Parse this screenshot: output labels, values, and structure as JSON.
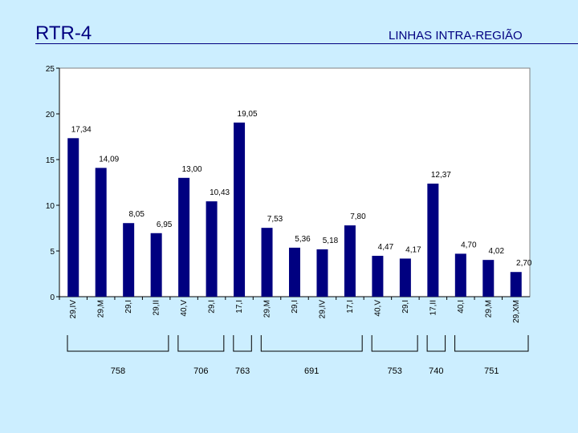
{
  "header": {
    "title": "RTR-4",
    "subtitle": "LINHAS INTRA-REGIÃO"
  },
  "chart_data": {
    "type": "bar",
    "title": "RTR-4",
    "subtitle": "LINHAS INTRA-REGIÃO",
    "ylim": [
      0,
      25
    ],
    "yticks": [
      0,
      5,
      10,
      15,
      20,
      25
    ],
    "grid": false,
    "bar_color": "#000080",
    "plot_bg": "#ffffff",
    "categories": [
      "29,IV",
      "29,M",
      "29,I",
      "29,II",
      "40,V",
      "29,I",
      "17,I",
      "29,M",
      "29,I",
      "29,IV",
      "17,I",
      "40,V",
      "29,I",
      "17,II",
      "40,I",
      "29,M",
      "29,XM"
    ],
    "values": [
      17.34,
      14.09,
      8.05,
      6.95,
      13.0,
      10.43,
      19.05,
      7.53,
      5.36,
      5.18,
      7.8,
      4.47,
      4.17,
      12.37,
      4.7,
      4.02,
      2.7
    ],
    "value_labels": [
      "17,34",
      "14,09",
      "8,05",
      "6,95",
      "13,00",
      "10,43",
      "19,05",
      "7,53",
      "5,36",
      "5,18",
      "7,80",
      "4,47",
      "4,17",
      "12,37",
      "4,70",
      "4,02",
      "2,70"
    ],
    "groups": [
      {
        "label": "758",
        "start": 0,
        "end": 3
      },
      {
        "label": "706",
        "start": 4,
        "end": 5
      },
      {
        "label": "763",
        "start": 6,
        "end": 6
      },
      {
        "label": "691",
        "start": 7,
        "end": 10
      },
      {
        "label": "753",
        "start": 11,
        "end": 12
      },
      {
        "label": "740",
        "start": 13,
        "end": 13
      },
      {
        "label": "751",
        "start": 14,
        "end": 16
      }
    ]
  }
}
